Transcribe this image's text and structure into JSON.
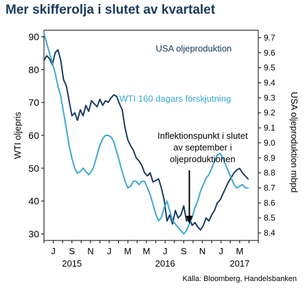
{
  "title": "Mer skifferolja i slutet av kvartalet",
  "source": "Källa: Bloomberg, Handelsbanken",
  "chart_data": {
    "type": "line",
    "left_axis": {
      "label": "WTI oljepris",
      "ylim": [
        28,
        92
      ],
      "ticks": [
        30,
        40,
        50,
        60,
        70,
        80,
        90
      ]
    },
    "right_axis": {
      "label": "USA oljeproduktion mbpd",
      "ylim": [
        8.35,
        9.75
      ],
      "ticks": [
        8.4,
        8.5,
        8.6,
        8.7,
        8.8,
        8.9,
        9.0,
        9.1,
        9.2,
        9.3,
        9.4,
        9.5,
        9.6,
        9.7
      ]
    },
    "x_axis": {
      "month_labels": [
        "J",
        "S",
        "N",
        "J",
        "M",
        "M",
        "J",
        "S",
        "N",
        "J",
        "M"
      ],
      "month_index": [
        1,
        3,
        5,
        7,
        9,
        11,
        13,
        15,
        17,
        19,
        21
      ],
      "year_labels": [
        {
          "label": "2015",
          "month_index": 3
        },
        {
          "label": "2016",
          "month_index": 13
        },
        {
          "label": "2017",
          "month_index": 21
        }
      ],
      "xlim": [
        0,
        23
      ]
    },
    "series": [
      {
        "name": "USA oljeproduktion",
        "axis": "right",
        "color": "#1a3a60",
        "x": [
          0.0,
          0.3,
          0.6,
          0.9,
          1.2,
          1.5,
          1.8,
          2.1,
          2.4,
          2.7,
          3.0,
          3.3,
          3.6,
          3.9,
          4.2,
          4.5,
          4.8,
          5.1,
          5.4,
          5.7,
          6.0,
          6.3,
          6.6,
          6.9,
          7.2,
          7.5,
          7.8,
          8.1,
          8.4,
          8.7,
          9.0,
          9.3,
          9.6,
          9.9,
          10.2,
          10.5,
          10.8,
          11.1,
          11.4,
          11.7,
          12.0,
          12.3,
          12.6,
          12.9,
          13.2,
          13.5,
          13.8,
          14.1,
          14.4,
          14.7,
          15.0,
          15.3,
          15.6,
          15.9,
          16.2,
          16.5,
          16.8,
          17.1,
          17.4,
          17.7,
          18.0,
          18.3,
          18.6,
          18.9,
          19.2,
          19.5,
          19.8,
          20.1,
          20.4,
          20.7,
          21.0,
          21.3,
          21.6,
          21.9
        ],
        "values": [
          9.55,
          9.58,
          9.56,
          9.52,
          9.6,
          9.62,
          9.55,
          9.42,
          9.38,
          9.28,
          9.18,
          9.2,
          9.15,
          9.22,
          9.18,
          9.25,
          9.21,
          9.28,
          9.26,
          9.24,
          9.29,
          9.25,
          9.28,
          9.27,
          9.3,
          9.32,
          9.31,
          9.26,
          9.22,
          9.1,
          9.02,
          8.98,
          8.95,
          8.9,
          8.88,
          8.85,
          8.8,
          8.78,
          8.8,
          8.74,
          8.75,
          8.76,
          8.7,
          8.62,
          8.48,
          8.52,
          8.46,
          8.55,
          8.5,
          8.52,
          8.58,
          8.48,
          8.5,
          8.45,
          8.47,
          8.44,
          8.42,
          8.45,
          8.5,
          8.48,
          8.52,
          8.55,
          8.6,
          8.62,
          8.66,
          8.7,
          8.74,
          8.77,
          8.8,
          8.82,
          8.83,
          8.8,
          8.78,
          8.76
        ]
      },
      {
        "name": "WTI 160 dagars förskjutning",
        "axis": "left",
        "color": "#3aa7d0",
        "x": [
          0.0,
          0.3,
          0.6,
          0.9,
          1.2,
          1.5,
          1.8,
          2.1,
          2.4,
          2.7,
          3.0,
          3.3,
          3.6,
          3.9,
          4.2,
          4.5,
          4.8,
          5.1,
          5.4,
          5.7,
          6.0,
          6.3,
          6.6,
          6.9,
          7.2,
          7.5,
          7.8,
          8.1,
          8.4,
          8.7,
          9.0,
          9.3,
          9.6,
          9.9,
          10.2,
          10.5,
          10.8,
          11.1,
          11.4,
          11.7,
          12.0,
          12.3,
          12.6,
          12.9,
          13.2,
          13.5,
          13.8,
          14.1,
          14.4,
          14.7,
          15.0,
          15.3,
          15.6,
          15.9,
          16.2,
          16.5,
          16.8,
          17.1,
          17.4,
          17.7,
          18.0,
          18.3,
          18.6,
          18.9,
          19.2,
          19.5,
          19.8,
          20.1,
          20.4,
          20.7,
          21.0,
          21.3,
          21.6,
          21.9
        ],
        "values": [
          91,
          88,
          85,
          82,
          79,
          75,
          72,
          67,
          62,
          57,
          53,
          50,
          48.5,
          49,
          50,
          49,
          48,
          49,
          51,
          54,
          57,
          59,
          60,
          60,
          59.5,
          58,
          55,
          52,
          49,
          46,
          44,
          44.5,
          46,
          46,
          45,
          46,
          46,
          44,
          42,
          39,
          36,
          34,
          35,
          38,
          40,
          37,
          34,
          33,
          32,
          31,
          30,
          31,
          33,
          35,
          38,
          40,
          43,
          45,
          47,
          48,
          50,
          52,
          54,
          54.5,
          53,
          51,
          49,
          47,
          45,
          44,
          44.5,
          45,
          44,
          44
        ]
      }
    ],
    "annotations": [
      {
        "text": "USA oljeproduktion"
      },
      {
        "text": "WTI 160 dagars förskjutning"
      },
      {
        "lines": [
          "Inflektionspunkt i slutet",
          "av september i",
          "oljeproduktionen"
        ],
        "arrow_to_month": 15.6
      }
    ]
  }
}
